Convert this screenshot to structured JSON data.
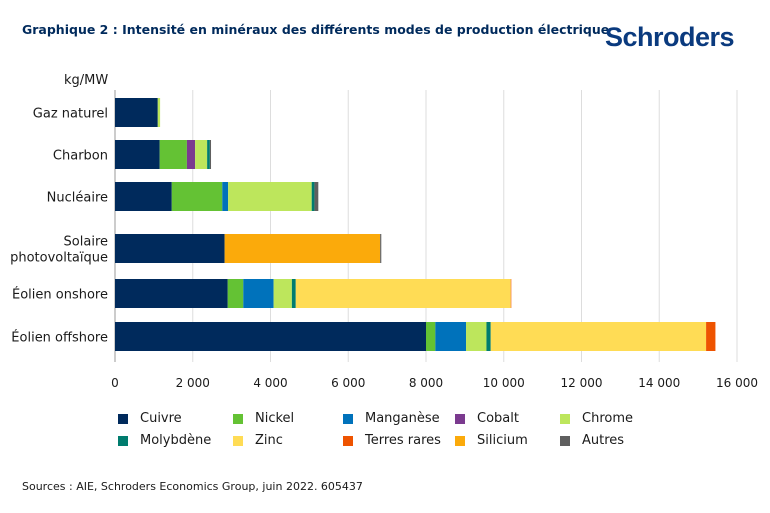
{
  "title": "Graphique 2 : Intensité en minéraux des différents modes de production électrique",
  "logo": "Schroders",
  "source": "Sources : AIE, Schroders Economics Group, juin 2022. 605437",
  "chart_data": {
    "type": "bar",
    "orientation": "horizontal",
    "stacked": true,
    "unit_label": "kg/MW",
    "xlim": [
      0,
      16000
    ],
    "xticks": [
      0,
      2000,
      4000,
      6000,
      8000,
      10000,
      12000,
      14000,
      16000
    ],
    "xtick_labels": [
      "0",
      "2 000",
      "4 000",
      "6 000",
      "8 000",
      "10 000",
      "12 000",
      "14 000",
      "16 000"
    ],
    "grid": true,
    "legend_position": "bottom",
    "categories": [
      "Gaz naturel",
      "Charbon",
      "Nucléaire",
      "Solaire photovoltaïque",
      "Éolien onshore",
      "Éolien offshore"
    ],
    "series": [
      {
        "name": "Cuivre",
        "color": "#002a5c",
        "values": [
          1100,
          1150,
          1460,
          2820,
          2900,
          8000
        ]
      },
      {
        "name": "Nickel",
        "color": "#64c234",
        "values": [
          0,
          700,
          1300,
          0,
          400,
          240
        ]
      },
      {
        "name": "Manganèse",
        "color": "#0072bb",
        "values": [
          0,
          0,
          150,
          0,
          780,
          790
        ]
      },
      {
        "name": "Cobalt",
        "color": "#7b3a8f",
        "values": [
          0,
          210,
          0,
          0,
          0,
          0
        ]
      },
      {
        "name": "Chrome",
        "color": "#bde65c",
        "values": [
          60,
          310,
          2150,
          0,
          470,
          525
        ]
      },
      {
        "name": "Molybdène",
        "color": "#007c6e",
        "values": [
          0,
          70,
          70,
          0,
          100,
          110
        ]
      },
      {
        "name": "Zinc",
        "color": "#ffdc55",
        "values": [
          0,
          0,
          0,
          0,
          5530,
          5540
        ]
      },
      {
        "name": "Terres rares",
        "color": "#ee5300",
        "values": [
          0,
          0,
          0,
          0,
          14,
          240
        ]
      },
      {
        "name": "Silicium",
        "color": "#fbaa0b",
        "values": [
          0,
          0,
          0,
          4000,
          0,
          0
        ]
      },
      {
        "name": "Autres",
        "color": "#5f5f5f",
        "values": [
          0,
          30,
          100,
          30,
          0,
          0
        ]
      }
    ]
  }
}
